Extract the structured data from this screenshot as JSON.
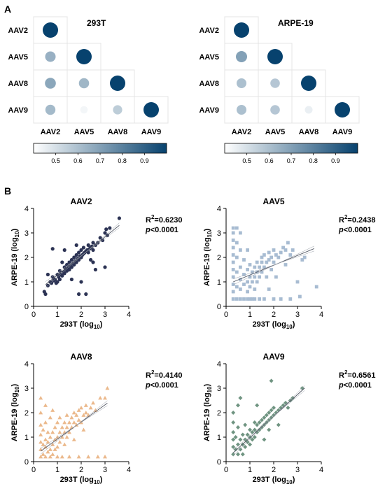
{
  "panels": {
    "a": "A",
    "b": "B"
  },
  "chart_data": [
    {
      "type": "heatmap",
      "title": "293T",
      "rows": [
        "AAV2",
        "AAV5",
        "AAV8",
        "AAV9"
      ],
      "cols": [
        "AAV2",
        "AAV5",
        "AAV8",
        "AAV9"
      ],
      "values": [
        [
          1.0,
          null,
          null,
          null
        ],
        [
          0.65,
          1.0,
          null,
          null
        ],
        [
          0.68,
          0.63,
          1.0,
          null
        ],
        [
          0.62,
          0.43,
          0.56,
          1.0
        ]
      ],
      "colorbar": {
        "range": [
          0.4,
          1.0
        ],
        "ticks": [
          0.5,
          0.6,
          0.7,
          0.8,
          0.9
        ],
        "colors": [
          "#ffffff",
          "#07426e"
        ]
      }
    },
    {
      "type": "heatmap",
      "title": "ARPE-19",
      "rows": [
        "AAV2",
        "AAV5",
        "AAV8",
        "AAV9"
      ],
      "cols": [
        "AAV2",
        "AAV5",
        "AAV8",
        "AAV9"
      ],
      "values": [
        [
          1.0,
          null,
          null,
          null
        ],
        [
          0.7,
          1.0,
          null,
          null
        ],
        [
          0.6,
          0.58,
          1.0,
          null
        ],
        [
          0.6,
          0.58,
          0.45,
          1.0
        ]
      ],
      "colorbar": {
        "range": [
          0.4,
          1.0
        ],
        "ticks": [
          0.5,
          0.6,
          0.7,
          0.8,
          0.9
        ],
        "colors": [
          "#ffffff",
          "#07426e"
        ]
      }
    },
    {
      "type": "scatter",
      "title": "AAV2",
      "xlabel": "293T (log",
      "ylabel": "ARPE-19 (log",
      "label_sub": "10",
      "xlim": [
        0,
        4
      ],
      "ylim": [
        0,
        4
      ],
      "xticks": [
        0,
        1,
        2,
        3,
        4
      ],
      "yticks": [
        0,
        1,
        2,
        3,
        4
      ],
      "marker": "circle",
      "color": "#2c3354",
      "r2_label": "R",
      "r2_sup": "2",
      "r2_value": "=0.6230",
      "p_label": "p",
      "p_value": "<0.0001",
      "fit": {
        "slope": 0.78,
        "intercept": 0.5,
        "x_range": [
          0.5,
          3.6
        ]
      },
      "points": [
        [
          0.45,
          0.6
        ],
        [
          0.5,
          0.5
        ],
        [
          0.6,
          0.85
        ],
        [
          0.6,
          1.3
        ],
        [
          0.7,
          1.0
        ],
        [
          0.75,
          0.95
        ],
        [
          0.8,
          1.2
        ],
        [
          0.85,
          1.05
        ],
        [
          0.9,
          1.1
        ],
        [
          0.95,
          0.95
        ],
        [
          1.0,
          1.0
        ],
        [
          1.0,
          1.3
        ],
        [
          1.05,
          1.2
        ],
        [
          1.1,
          1.1
        ],
        [
          1.1,
          1.45
        ],
        [
          1.15,
          1.3
        ],
        [
          1.2,
          1.25
        ],
        [
          1.25,
          1.4
        ],
        [
          1.3,
          1.35
        ],
        [
          1.3,
          1.6
        ],
        [
          1.35,
          1.5
        ],
        [
          1.4,
          1.45
        ],
        [
          1.4,
          1.7
        ],
        [
          1.45,
          1.55
        ],
        [
          1.5,
          1.5
        ],
        [
          1.5,
          1.8
        ],
        [
          1.55,
          1.65
        ],
        [
          1.6,
          1.6
        ],
        [
          1.6,
          1.9
        ],
        [
          1.65,
          1.75
        ],
        [
          1.7,
          1.7
        ],
        [
          1.7,
          2.0
        ],
        [
          1.75,
          1.85
        ],
        [
          1.8,
          1.8
        ],
        [
          1.8,
          2.1
        ],
        [
          1.85,
          1.95
        ],
        [
          1.9,
          1.9
        ],
        [
          1.9,
          2.2
        ],
        [
          1.95,
          2.05
        ],
        [
          2.0,
          2.0
        ],
        [
          2.0,
          2.3
        ],
        [
          2.05,
          2.1
        ],
        [
          2.1,
          2.15
        ],
        [
          2.1,
          2.4
        ],
        [
          2.15,
          2.2
        ],
        [
          2.2,
          2.25
        ],
        [
          2.25,
          2.3
        ],
        [
          2.3,
          2.2
        ],
        [
          2.3,
          2.5
        ],
        [
          2.35,
          2.35
        ],
        [
          2.4,
          2.4
        ],
        [
          2.45,
          2.45
        ],
        [
          2.5,
          2.3
        ],
        [
          2.5,
          2.6
        ],
        [
          2.6,
          2.5
        ],
        [
          2.7,
          2.6
        ],
        [
          2.8,
          2.8
        ],
        [
          2.9,
          2.7
        ],
        [
          3.0,
          3.0
        ],
        [
          3.05,
          3.15
        ],
        [
          3.1,
          2.9
        ],
        [
          3.2,
          3.2
        ],
        [
          3.6,
          3.6
        ],
        [
          0.8,
          2.35
        ],
        [
          1.6,
          1.1
        ],
        [
          1.9,
          0.5
        ],
        [
          2.2,
          0.5
        ],
        [
          2.0,
          1.0
        ],
        [
          2.6,
          1.5
        ],
        [
          3.0,
          1.6
        ],
        [
          1.3,
          2.3
        ],
        [
          1.8,
          2.5
        ],
        [
          2.5,
          1.8
        ],
        [
          1.2,
          1.8
        ],
        [
          2.4,
          1.9
        ]
      ]
    },
    {
      "type": "scatter",
      "title": "AAV5",
      "xlabel": "293T (log",
      "ylabel": "ARPE-19 (log",
      "label_sub": "10",
      "xlim": [
        0,
        4
      ],
      "ylim": [
        0,
        4
      ],
      "xticks": [
        0,
        1,
        2,
        3,
        4
      ],
      "yticks": [
        0,
        1,
        2,
        3,
        4
      ],
      "marker": "square",
      "color": "#a8bcd2",
      "r2_label": "R",
      "r2_sup": "2",
      "r2_value": "=0.2438",
      "p_label": "p",
      "p_value": "<0.0001",
      "fit": {
        "slope": 0.4,
        "intercept": 0.88,
        "x_range": [
          0.3,
          3.7
        ]
      },
      "points": [
        [
          0.3,
          0.3
        ],
        [
          0.3,
          0.6
        ],
        [
          0.3,
          0.9
        ],
        [
          0.3,
          1.2
        ],
        [
          0.3,
          1.5
        ],
        [
          0.3,
          1.8
        ],
        [
          0.3,
          2.1
        ],
        [
          0.3,
          2.4
        ],
        [
          0.3,
          2.7
        ],
        [
          0.3,
          3.0
        ],
        [
          0.3,
          3.2
        ],
        [
          0.45,
          0.3
        ],
        [
          0.45,
          0.8
        ],
        [
          0.45,
          1.4
        ],
        [
          0.45,
          2.0
        ],
        [
          0.45,
          2.6
        ],
        [
          0.45,
          3.2
        ],
        [
          0.6,
          0.3
        ],
        [
          0.6,
          0.7
        ],
        [
          0.6,
          1.1
        ],
        [
          0.6,
          1.6
        ],
        [
          0.6,
          2.3
        ],
        [
          0.6,
          3.0
        ],
        [
          0.75,
          0.3
        ],
        [
          0.75,
          0.9
        ],
        [
          0.75,
          1.3
        ],
        [
          0.75,
          1.9
        ],
        [
          0.9,
          0.3
        ],
        [
          0.9,
          0.6
        ],
        [
          0.9,
          1.0
        ],
        [
          0.9,
          1.5
        ],
        [
          0.9,
          2.3
        ],
        [
          1.0,
          0.3
        ],
        [
          1.0,
          0.8
        ],
        [
          1.0,
          1.2
        ],
        [
          1.0,
          1.7
        ],
        [
          1.1,
          0.3
        ],
        [
          1.1,
          1.0
        ],
        [
          1.1,
          1.4
        ],
        [
          1.2,
          0.3
        ],
        [
          1.2,
          0.7
        ],
        [
          1.2,
          1.2
        ],
        [
          1.2,
          1.6
        ],
        [
          1.3,
          1.0
        ],
        [
          1.3,
          1.4
        ],
        [
          1.3,
          1.8
        ],
        [
          1.4,
          0.3
        ],
        [
          1.4,
          1.2
        ],
        [
          1.4,
          1.6
        ],
        [
          1.5,
          1.4
        ],
        [
          1.5,
          1.8
        ],
        [
          1.5,
          2.0
        ],
        [
          1.6,
          0.3
        ],
        [
          1.6,
          1.6
        ],
        [
          1.6,
          2.1
        ],
        [
          1.7,
          1.2
        ],
        [
          1.7,
          1.8
        ],
        [
          1.8,
          0.7
        ],
        [
          1.8,
          1.9
        ],
        [
          1.8,
          2.2
        ],
        [
          1.9,
          1.5
        ],
        [
          1.9,
          2.0
        ],
        [
          2.0,
          0.3
        ],
        [
          2.0,
          1.8
        ],
        [
          2.0,
          2.3
        ],
        [
          2.1,
          1.2
        ],
        [
          2.1,
          2.1
        ],
        [
          2.2,
          2.0
        ],
        [
          2.3,
          0.3
        ],
        [
          2.3,
          2.2
        ],
        [
          2.4,
          2.4
        ],
        [
          2.5,
          1.7
        ],
        [
          2.5,
          2.3
        ],
        [
          2.6,
          2.6
        ],
        [
          2.7,
          0.3
        ],
        [
          2.7,
          2.1
        ],
        [
          2.8,
          2.3
        ],
        [
          3.0,
          1.0
        ],
        [
          3.1,
          0.4
        ],
        [
          3.2,
          1.9
        ],
        [
          3.3,
          2.0
        ],
        [
          3.8,
          0.8
        ]
      ]
    },
    {
      "type": "scatter",
      "title": "AAV8",
      "xlabel": "293T (log",
      "ylabel": "ARPE-19 (log",
      "label_sub": "10",
      "xlim": [
        0,
        4
      ],
      "ylim": [
        0,
        4
      ],
      "xticks": [
        0,
        1,
        2,
        3,
        4
      ],
      "yticks": [
        0,
        1,
        2,
        3,
        4
      ],
      "marker": "triangle",
      "color": "#ebb98c",
      "r2_label": "R",
      "r2_sup": "2",
      "r2_value": "=0.4140",
      "p_label": "p",
      "p_value": "<0.0001",
      "fit": {
        "slope": 0.7,
        "intercept": 0.22,
        "x_range": [
          0.3,
          3.1
        ]
      },
      "points": [
        [
          0.3,
          0.2
        ],
        [
          0.3,
          0.5
        ],
        [
          0.3,
          0.8
        ],
        [
          0.3,
          1.1
        ],
        [
          0.3,
          1.5
        ],
        [
          0.3,
          2.0
        ],
        [
          0.3,
          2.6
        ],
        [
          0.4,
          0.3
        ],
        [
          0.4,
          0.7
        ],
        [
          0.4,
          1.3
        ],
        [
          0.5,
          0.2
        ],
        [
          0.5,
          0.6
        ],
        [
          0.5,
          0.9
        ],
        [
          0.5,
          1.6
        ],
        [
          0.5,
          2.3
        ],
        [
          0.6,
          0.4
        ],
        [
          0.6,
          0.8
        ],
        [
          0.6,
          1.2
        ],
        [
          0.7,
          0.2
        ],
        [
          0.7,
          0.5
        ],
        [
          0.7,
          1.0
        ],
        [
          0.7,
          1.8
        ],
        [
          0.8,
          0.3
        ],
        [
          0.8,
          0.7
        ],
        [
          0.8,
          1.2
        ],
        [
          0.8,
          2.1
        ],
        [
          0.9,
          0.5
        ],
        [
          0.9,
          0.9
        ],
        [
          0.9,
          1.4
        ],
        [
          1.0,
          0.2
        ],
        [
          1.0,
          0.6
        ],
        [
          1.0,
          1.0
        ],
        [
          1.0,
          1.6
        ],
        [
          1.1,
          0.8
        ],
        [
          1.1,
          1.2
        ],
        [
          1.1,
          1.8
        ],
        [
          1.2,
          0.2
        ],
        [
          1.2,
          1.0
        ],
        [
          1.2,
          1.4
        ],
        [
          1.3,
          0.7
        ],
        [
          1.3,
          1.2
        ],
        [
          1.3,
          1.6
        ],
        [
          1.4,
          1.0
        ],
        [
          1.4,
          1.4
        ],
        [
          1.4,
          1.9
        ],
        [
          1.5,
          0.2
        ],
        [
          1.5,
          1.2
        ],
        [
          1.5,
          1.6
        ],
        [
          1.6,
          1.4
        ],
        [
          1.6,
          1.8
        ],
        [
          1.7,
          0.9
        ],
        [
          1.7,
          1.6
        ],
        [
          1.7,
          2.0
        ],
        [
          1.8,
          1.5
        ],
        [
          1.8,
          1.9
        ],
        [
          1.9,
          0.2
        ],
        [
          1.9,
          1.7
        ],
        [
          1.9,
          2.1
        ],
        [
          2.0,
          1.6
        ],
        [
          2.0,
          2.2
        ],
        [
          2.1,
          1.3
        ],
        [
          2.1,
          1.9
        ],
        [
          2.2,
          2.0
        ],
        [
          2.2,
          2.3
        ],
        [
          2.3,
          0.2
        ],
        [
          2.3,
          1.9
        ],
        [
          2.4,
          2.2
        ],
        [
          2.5,
          2.4
        ],
        [
          2.6,
          2.1
        ],
        [
          2.7,
          0.2
        ],
        [
          2.8,
          2.6
        ],
        [
          3.0,
          0.2
        ],
        [
          3.0,
          2.6
        ],
        [
          3.1,
          3.0
        ]
      ]
    },
    {
      "type": "scatter",
      "title": "AAV9",
      "xlabel": "293T (log",
      "ylabel": "ARPE-19 (log",
      "label_sub": "10",
      "xlim": [
        0,
        4
      ],
      "ylim": [
        0,
        4
      ],
      "xticks": [
        0,
        1,
        2,
        3,
        4
      ],
      "yticks": [
        0,
        1,
        2,
        3,
        4
      ],
      "marker": "diamond",
      "color": "#6f9481",
      "r2_label": "R",
      "r2_sup": "2",
      "r2_value": "=0.6561",
      "p_label": "p",
      "p_value": "<0.0001",
      "fit": {
        "slope": 0.88,
        "intercept": 0.1,
        "x_range": [
          0.3,
          3.3
        ]
      },
      "points": [
        [
          0.3,
          0.3
        ],
        [
          0.3,
          0.6
        ],
        [
          0.3,
          0.9
        ],
        [
          0.3,
          1.2
        ],
        [
          0.3,
          1.6
        ],
        [
          0.3,
          2.0
        ],
        [
          0.4,
          0.5
        ],
        [
          0.4,
          1.0
        ],
        [
          0.5,
          0.3
        ],
        [
          0.5,
          0.7
        ],
        [
          0.5,
          1.4
        ],
        [
          0.5,
          2.3
        ],
        [
          0.6,
          0.5
        ],
        [
          0.6,
          0.9
        ],
        [
          0.7,
          0.3
        ],
        [
          0.7,
          0.7
        ],
        [
          0.7,
          1.1
        ],
        [
          0.8,
          0.6
        ],
        [
          0.8,
          0.9
        ],
        [
          0.8,
          1.5
        ],
        [
          0.9,
          0.8
        ],
        [
          0.9,
          1.1
        ],
        [
          1.0,
          0.7
        ],
        [
          1.0,
          1.0
        ],
        [
          1.0,
          1.3
        ],
        [
          1.1,
          0.9
        ],
        [
          1.1,
          1.2
        ],
        [
          1.2,
          1.0
        ],
        [
          1.2,
          1.3
        ],
        [
          1.2,
          1.6
        ],
        [
          1.3,
          1.2
        ],
        [
          1.3,
          1.5
        ],
        [
          1.4,
          1.3
        ],
        [
          1.4,
          1.6
        ],
        [
          1.5,
          1.4
        ],
        [
          1.5,
          1.7
        ],
        [
          1.6,
          1.5
        ],
        [
          1.6,
          1.8
        ],
        [
          1.7,
          1.6
        ],
        [
          1.7,
          1.9
        ],
        [
          1.8,
          1.7
        ],
        [
          1.8,
          2.0
        ],
        [
          1.9,
          1.8
        ],
        [
          1.9,
          2.1
        ],
        [
          2.0,
          1.9
        ],
        [
          2.0,
          2.2
        ],
        [
          2.1,
          2.0
        ],
        [
          2.2,
          2.1
        ],
        [
          2.3,
          2.2
        ],
        [
          2.4,
          2.3
        ],
        [
          2.5,
          2.4
        ],
        [
          2.6,
          2.2
        ],
        [
          2.7,
          2.5
        ],
        [
          2.8,
          2.6
        ],
        [
          3.2,
          3.0
        ],
        [
          1.3,
          2.3
        ],
        [
          1.9,
          3.3
        ],
        [
          1.6,
          0.9
        ],
        [
          1.8,
          1.3
        ],
        [
          2.2,
          1.5
        ],
        [
          0.6,
          2.6
        ]
      ]
    }
  ]
}
